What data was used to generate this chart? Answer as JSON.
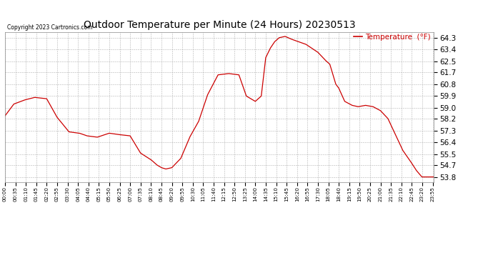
{
  "title": "Outdoor Temperature per Minute (24 Hours) 20230513",
  "copyright_text": "Copyright 2023 Cartronics.com",
  "legend_label": "Temperature  (°F)",
  "line_color": "#cc0000",
  "background_color": "#ffffff",
  "grid_color": "#aaaaaa",
  "title_color": "#000000",
  "copyright_color": "#000000",
  "legend_color": "#cc0000",
  "ylim": [
    53.4,
    64.72
  ],
  "yticks": [
    53.8,
    54.7,
    55.5,
    56.4,
    57.3,
    58.2,
    59.0,
    59.9,
    60.8,
    61.7,
    62.5,
    63.4,
    64.3
  ],
  "x_tick_interval": 35,
  "time_points": 1440,
  "key_times": [
    0,
    30,
    65,
    100,
    140,
    175,
    215,
    250,
    275,
    310,
    350,
    380,
    420,
    455,
    490,
    510,
    525,
    540,
    560,
    590,
    620,
    650,
    680,
    715,
    750,
    785,
    810,
    840,
    860,
    875,
    890,
    905,
    920,
    940,
    960,
    985,
    1010,
    1050,
    1075,
    1090,
    1110,
    1120,
    1140,
    1165,
    1185,
    1210,
    1235,
    1260,
    1285,
    1310,
    1335,
    1360,
    1380,
    1399
  ],
  "key_temps": [
    58.4,
    59.3,
    59.6,
    59.8,
    59.7,
    58.3,
    57.2,
    57.1,
    56.9,
    56.8,
    57.1,
    57.0,
    56.9,
    55.6,
    55.1,
    54.7,
    54.5,
    54.4,
    54.5,
    55.2,
    56.8,
    58.0,
    60.0,
    61.5,
    61.6,
    61.5,
    59.9,
    59.5,
    59.9,
    62.8,
    63.5,
    64.0,
    64.3,
    64.4,
    64.2,
    64.0,
    63.8,
    63.2,
    62.6,
    62.3,
    60.8,
    60.5,
    59.5,
    59.2,
    59.1,
    59.2,
    59.1,
    58.8,
    58.2,
    57.0,
    55.8,
    55.0,
    54.3,
    53.8
  ]
}
